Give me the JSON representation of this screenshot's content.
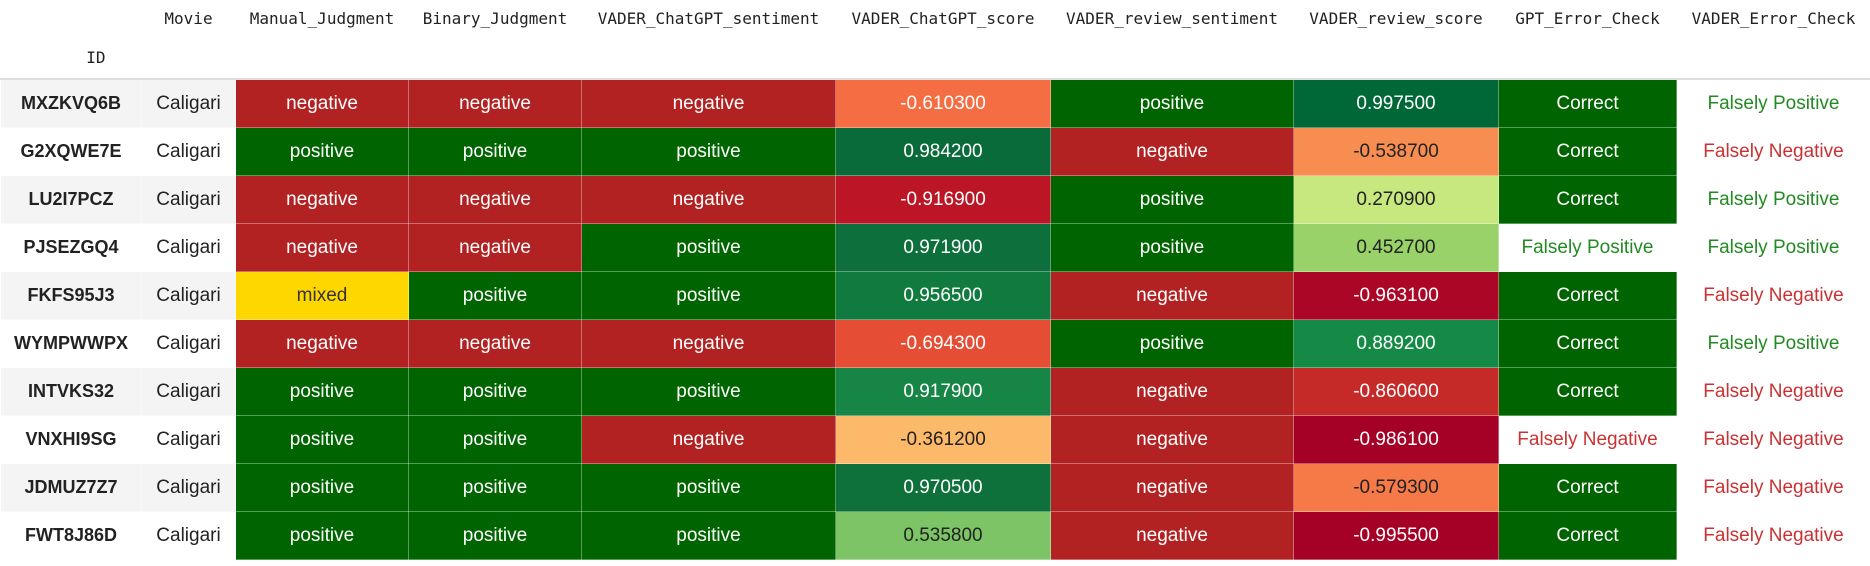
{
  "table": {
    "columns": [
      "Movie",
      "Manual_Judgment",
      "Binary_Judgment",
      "VADER_ChatGPT_sentiment",
      "VADER_ChatGPT_score",
      "VADER_review_sentiment",
      "VADER_review_score",
      "GPT_Error_Check",
      "VADER_Error_Check"
    ],
    "index_name": "ID",
    "rows": [
      [
        "MXZKVQ6B",
        "Caligari",
        "negative",
        "negative",
        "negative",
        "-0.610300",
        "positive",
        "0.997500",
        "Correct",
        "Falsely Positive"
      ],
      [
        "G2XQWE7E",
        "Caligari",
        "positive",
        "positive",
        "positive",
        "0.984200",
        "negative",
        "-0.538700",
        "Correct",
        "Falsely Negative"
      ],
      [
        "LU2I7PCZ",
        "Caligari",
        "negative",
        "negative",
        "negative",
        "-0.916900",
        "positive",
        "0.270900",
        "Correct",
        "Falsely Positive"
      ],
      [
        "PJSEZGQ4",
        "Caligari",
        "negative",
        "negative",
        "positive",
        "0.971900",
        "positive",
        "0.452700",
        "Falsely Positive",
        "Falsely Positive"
      ],
      [
        "FKFS95J3",
        "Caligari",
        "mixed",
        "positive",
        "positive",
        "0.956500",
        "negative",
        "-0.963100",
        "Correct",
        "Falsely Negative"
      ],
      [
        "WYMPWWPX",
        "Caligari",
        "negative",
        "negative",
        "negative",
        "-0.694300",
        "positive",
        "0.889200",
        "Correct",
        "Falsely Positive"
      ],
      [
        "INTVKS32",
        "Caligari",
        "positive",
        "positive",
        "positive",
        "0.917900",
        "negative",
        "-0.860600",
        "Correct",
        "Falsely Negative"
      ],
      [
        "VNXHI9SG",
        "Caligari",
        "positive",
        "positive",
        "negative",
        "-0.361200",
        "negative",
        "-0.986100",
        "Falsely Negative",
        "Falsely Negative"
      ],
      [
        "JDMUZ7Z7",
        "Caligari",
        "positive",
        "positive",
        "positive",
        "0.970500",
        "negative",
        "-0.579300",
        "Correct",
        "Falsely Negative"
      ],
      [
        "FWT8J86D",
        "Caligari",
        "positive",
        "positive",
        "positive",
        "0.535800",
        "negative",
        "-0.995500",
        "Correct",
        "Falsely Negative"
      ]
    ],
    "styles": {
      "negative": {
        "bg": "#b22222",
        "fg": "#ffffff"
      },
      "positive": {
        "bg": "#006400",
        "fg": "#ffffff"
      },
      "mixed": {
        "bg": "#ffd700",
        "fg": "#333333"
      },
      "Correct": {
        "bg": "#006400",
        "fg": "#ffffff"
      },
      "Falsely Positive": {
        "bg": "#ffffff",
        "fg": "#228b22"
      },
      "Falsely Negative": {
        "bg": "#ffffff",
        "fg": "#c83232"
      }
    },
    "score_colors": {
      "5": [
        "#f46d43",
        "#0a6b3a",
        "#bb1526",
        "#0d6f3b",
        "#117a3e",
        "#e54e35",
        "#178545",
        "#fdb96a",
        "#0e703a",
        "#7cc465"
      ],
      "7": [
        "#006837",
        "#f88d52",
        "#c7e77f",
        "#98d268",
        "#ab0626",
        "#148a46",
        "#c62a28",
        "#a50026",
        "#f57a48",
        "#a50026"
      ]
    }
  }
}
